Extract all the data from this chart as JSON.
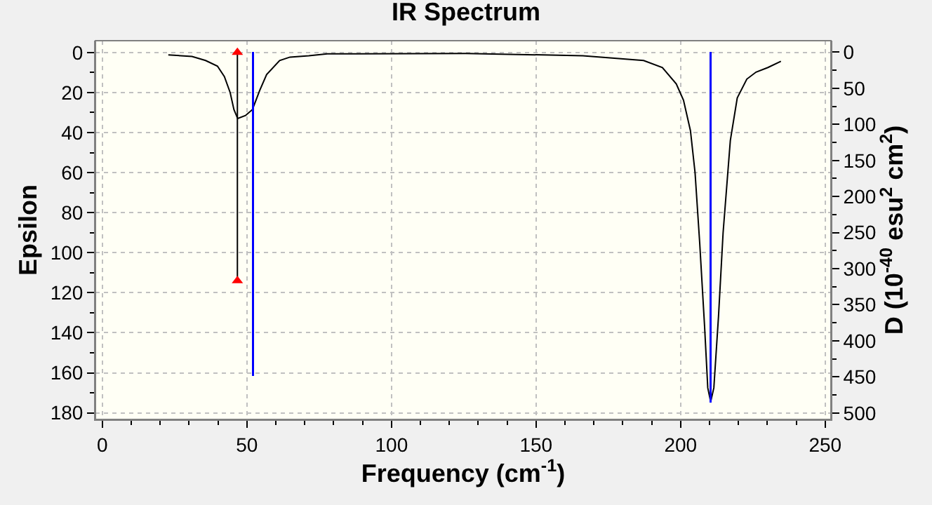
{
  "chart_data": {
    "type": "line",
    "title": "IR Spectrum",
    "xlabel": "Frequency (cm$^{-1}$)",
    "ylabel": "Epsilon",
    "y2label": "D (10$^{-40}$ esu$^{2}$ cm$^{2}$)",
    "xlim": [
      -2.4,
      252
    ],
    "xticks": [
      0,
      50,
      100,
      150,
      200,
      250
    ],
    "ylim": [
      183.3,
      -5.9
    ],
    "yticks": [
      0,
      20,
      40,
      60,
      80,
      100,
      120,
      140,
      160,
      180
    ],
    "y2lim": [
      509,
      -16
    ],
    "y2ticks": [
      0,
      50,
      100,
      150,
      200,
      250,
      300,
      350,
      400,
      450,
      500
    ],
    "grid": true,
    "series": [
      {
        "color": "#000000",
        "x": [
          22.8,
          31,
          35.7,
          39.8,
          42.2,
          44.2,
          45.5,
          46.8,
          49.5,
          51.9,
          54.4,
          56.8,
          61.3,
          64.9,
          71.4,
          77.8,
          125.7,
          166.2,
          187.2,
          193.7,
          198.5,
          201,
          203.4,
          205,
          206.6,
          208.3,
          209.4,
          210.4,
          211.5,
          213.1,
          214.7,
          217.2,
          219.6,
          222.9,
          226.1,
          230.2,
          234.7
        ],
        "values": [
          1.2,
          2,
          4,
          6.8,
          12,
          20,
          28.5,
          33,
          31.5,
          28.5,
          19,
          11,
          4,
          2.3,
          1.6,
          0.7,
          0.5,
          1.6,
          4,
          7.5,
          15.7,
          23.8,
          39,
          60,
          95,
          137,
          167.5,
          174.5,
          167.5,
          132,
          90,
          44,
          22.7,
          13.3,
          9.8,
          7.5,
          4.4
        ]
      },
      {
        "type": "bar",
        "axis": "y2",
        "color": "#0000ff",
        "x": [
          52.1,
          210.4
        ],
        "values": [
          449,
          486
        ]
      },
      {
        "type": "line",
        "color": "#000000",
        "x": [
          46.7,
          46.7
        ],
        "values": [
          0,
          114
        ]
      },
      {
        "type": "scatter",
        "color": "#ff0000",
        "marker": "triangle",
        "x": [
          46.7,
          46.7
        ],
        "values": [
          0,
          114
        ]
      }
    ]
  }
}
